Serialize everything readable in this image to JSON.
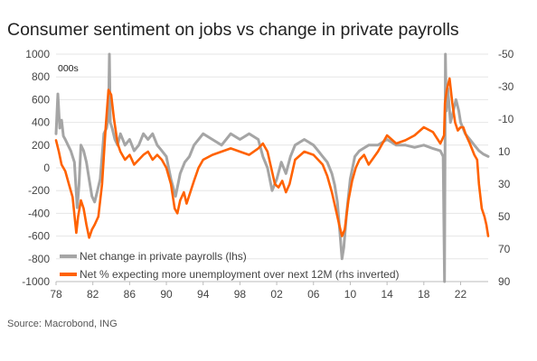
{
  "chart_data": {
    "type": "line",
    "title": "Consumer sentiment on jobs vs change in private payrolls",
    "unit_label": "000s",
    "source": "Source: Macrobond, ING",
    "x_ticks": [
      "78",
      "82",
      "86",
      "90",
      "94",
      "98",
      "02",
      "06",
      "10",
      "14",
      "18",
      "22"
    ],
    "xlim": [
      1978,
      2025
    ],
    "y_left": {
      "ticks": [
        "1000",
        "800",
        "600",
        "400",
        "200",
        "0",
        "-200",
        "-400",
        "-600",
        "-800",
        "-1000"
      ],
      "ylim": [
        -1000,
        1000
      ]
    },
    "y_right": {
      "ticks": [
        "-50",
        "-30",
        "-10",
        "10",
        "30",
        "50",
        "70",
        "90"
      ],
      "ylim": [
        -50,
        90
      ],
      "inverted": true
    },
    "grid": true,
    "legend_position": "bottom-left",
    "series": [
      {
        "name": "Net change in private payrolls (lhs)",
        "axis": "left",
        "color": "#a5a5a5",
        "x": [
          1978.0,
          1978.2,
          1978.4,
          1978.6,
          1978.8,
          1979.0,
          1979.3,
          1979.6,
          1980.0,
          1980.3,
          1980.5,
          1980.7,
          1981.0,
          1981.3,
          1981.6,
          1981.9,
          1982.2,
          1982.5,
          1982.8,
          1983.0,
          1983.2,
          1983.5,
          1983.7,
          1983.8,
          1983.9,
          1984.1,
          1984.4,
          1984.7,
          1985.0,
          1985.5,
          1986.0,
          1986.5,
          1987.0,
          1987.5,
          1988.0,
          1988.5,
          1989.0,
          1989.5,
          1990.0,
          1990.5,
          1991.0,
          1991.5,
          1992.0,
          1992.5,
          1993.0,
          1994.0,
          1995.0,
          1996.0,
          1997.0,
          1998.0,
          1999.0,
          2000.0,
          2000.5,
          2001.0,
          2001.5,
          2002.0,
          2002.5,
          2003.0,
          2003.5,
          2004.0,
          2005.0,
          2006.0,
          2006.5,
          2007.0,
          2007.5,
          2008.0,
          2008.3,
          2008.6,
          2008.9,
          2009.1,
          2009.3,
          2009.6,
          2010.0,
          2010.5,
          2011.0,
          2012.0,
          2013.0,
          2014.0,
          2015.0,
          2016.0,
          2017.0,
          2018.0,
          2019.0,
          2019.8,
          2020.1,
          2020.25,
          2020.35,
          2020.45,
          2020.6,
          2020.9,
          2021.2,
          2021.5,
          2021.8,
          2022.0,
          2022.5,
          2023.0,
          2023.5,
          2024.0,
          2024.5,
          2025.0
        ],
        "values": [
          300,
          650,
          350,
          420,
          280,
          250,
          200,
          150,
          50,
          -350,
          -150,
          200,
          150,
          50,
          -100,
          -250,
          -300,
          -200,
          -100,
          100,
          300,
          350,
          450,
          1000,
          400,
          350,
          250,
          200,
          300,
          200,
          250,
          150,
          200,
          300,
          250,
          300,
          200,
          150,
          100,
          -100,
          -250,
          -50,
          50,
          100,
          200,
          300,
          250,
          200,
          300,
          250,
          300,
          250,
          100,
          0,
          -200,
          -100,
          50,
          -50,
          100,
          200,
          250,
          200,
          150,
          100,
          50,
          -50,
          -150,
          -300,
          -600,
          -800,
          -700,
          -400,
          -100,
          100,
          150,
          200,
          200,
          250,
          200,
          200,
          180,
          200,
          170,
          150,
          100,
          -1000,
          1000,
          500,
          700,
          400,
          500,
          600,
          500,
          400,
          300,
          250,
          200,
          150,
          120,
          100
        ]
      },
      {
        "name": "Net % expecting more unemployment over next 12M (rhs inverted)",
        "axis": "right",
        "color": "#ff6200",
        "x": [
          1978.0,
          1978.3,
          1978.6,
          1979.0,
          1979.4,
          1979.8,
          1980.2,
          1980.4,
          1980.7,
          1981.0,
          1981.3,
          1981.6,
          1981.9,
          1982.2,
          1982.6,
          1983.0,
          1983.4,
          1983.7,
          1984.0,
          1984.3,
          1984.7,
          1985.0,
          1985.5,
          1986.0,
          1986.5,
          1987.0,
          1987.5,
          1988.0,
          1988.5,
          1989.0,
          1989.5,
          1990.0,
          1990.5,
          1990.9,
          1991.2,
          1991.5,
          1991.9,
          1992.2,
          1992.6,
          1993.0,
          1993.5,
          1994.0,
          1995.0,
          1996.0,
          1997.0,
          1998.0,
          1999.0,
          2000.0,
          2000.5,
          2001.0,
          2001.4,
          2001.8,
          2002.2,
          2002.6,
          2003.0,
          2003.4,
          2004.0,
          2005.0,
          2006.0,
          2006.5,
          2007.0,
          2007.5,
          2008.0,
          2008.4,
          2008.8,
          2009.1,
          2009.4,
          2009.8,
          2010.2,
          2010.6,
          2011.0,
          2011.5,
          2012.0,
          2013.0,
          2014.0,
          2015.0,
          2016.0,
          2017.0,
          2018.0,
          2019.0,
          2019.8,
          2020.2,
          2020.3,
          2020.5,
          2020.8,
          2021.1,
          2021.4,
          2021.7,
          2022.0,
          2022.3,
          2022.6,
          2023.0,
          2023.5,
          2023.8,
          2024.0,
          2024.3,
          2024.6,
          2024.8,
          2025.0
        ],
        "values": [
          3,
          10,
          18,
          22,
          30,
          38,
          60,
          50,
          40,
          45,
          55,
          63,
          58,
          55,
          50,
          30,
          -5,
          -28,
          -25,
          -10,
          5,
          10,
          15,
          12,
          18,
          15,
          12,
          10,
          15,
          12,
          15,
          20,
          30,
          45,
          48,
          40,
          35,
          42,
          35,
          28,
          20,
          15,
          12,
          10,
          8,
          10,
          12,
          8,
          5,
          10,
          20,
          30,
          32,
          28,
          35,
          30,
          15,
          10,
          12,
          15,
          18,
          25,
          35,
          45,
          55,
          62,
          58,
          40,
          28,
          20,
          15,
          12,
          18,
          10,
          0,
          5,
          3,
          0,
          -5,
          -2,
          5,
          0,
          -20,
          -28,
          -35,
          -20,
          -8,
          -3,
          -5,
          -5,
          0,
          5,
          12,
          15,
          30,
          45,
          50,
          55,
          62
        ]
      }
    ]
  }
}
